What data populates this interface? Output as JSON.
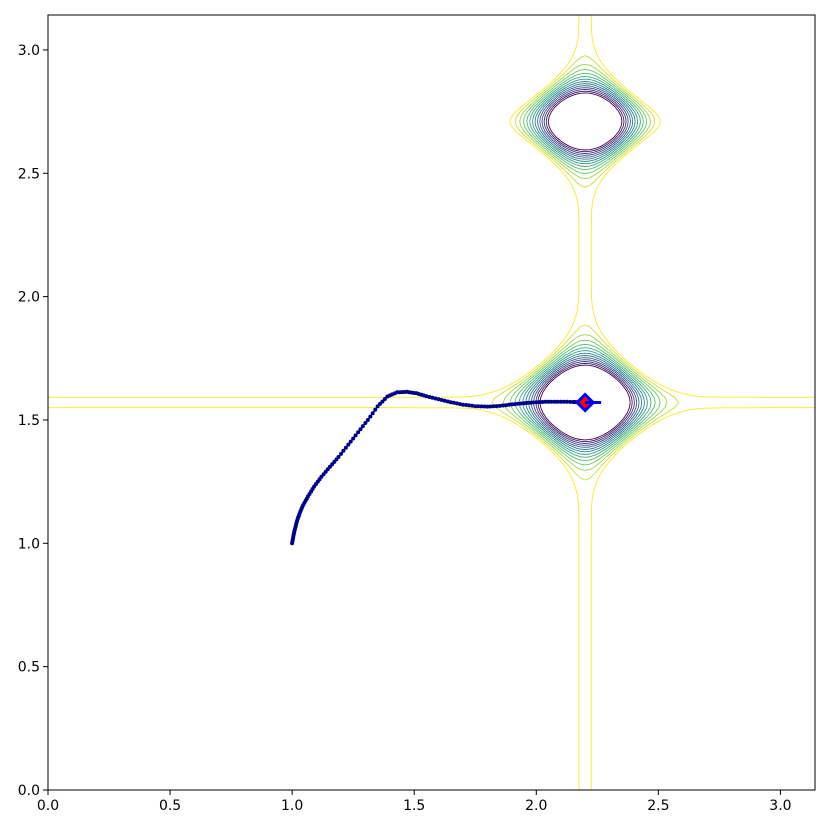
{
  "chart_data": {
    "type": "contour",
    "title": "",
    "xlabel": "",
    "ylabel": "",
    "xlim": [
      0,
      3.1416
    ],
    "ylim": [
      0,
      3.1416
    ],
    "x_ticks": [
      0.0,
      0.5,
      1.0,
      1.5,
      2.0,
      2.5,
      3.0
    ],
    "y_ticks": [
      0.0,
      0.5,
      1.0,
      1.5,
      2.0,
      2.5,
      3.0
    ],
    "x_tick_labels": [
      "0.0",
      "0.5",
      "1.0",
      "1.5",
      "2.0",
      "2.5",
      "3.0"
    ],
    "y_tick_labels": [
      "0.0",
      "0.5",
      "1.0",
      "1.5",
      "2.0",
      "2.5",
      "3.0"
    ],
    "grid": false,
    "colormap": "viridis",
    "contour_minima": [
      {
        "x": 2.2,
        "y": 1.5708
      },
      {
        "x": 2.2,
        "y": 2.71
      }
    ],
    "trajectory": {
      "color": "#00008b",
      "marker": "dot",
      "points": [
        [
          1.0,
          1.0
        ],
        [
          1.005,
          1.03
        ],
        [
          1.012,
          1.06
        ],
        [
          1.02,
          1.09
        ],
        [
          1.03,
          1.12
        ],
        [
          1.045,
          1.155
        ],
        [
          1.065,
          1.19
        ],
        [
          1.09,
          1.23
        ],
        [
          1.12,
          1.27
        ],
        [
          1.155,
          1.31
        ],
        [
          1.19,
          1.35
        ],
        [
          1.23,
          1.4
        ],
        [
          1.27,
          1.45
        ],
        [
          1.31,
          1.5
        ],
        [
          1.35,
          1.555
        ],
        [
          1.39,
          1.595
        ],
        [
          1.43,
          1.612
        ],
        [
          1.47,
          1.614
        ],
        [
          1.51,
          1.608
        ],
        [
          1.55,
          1.596
        ],
        [
          1.6,
          1.584
        ],
        [
          1.65,
          1.572
        ],
        [
          1.7,
          1.562
        ],
        [
          1.75,
          1.556
        ],
        [
          1.8,
          1.554
        ],
        [
          1.85,
          1.557
        ],
        [
          1.9,
          1.563
        ],
        [
          1.95,
          1.568
        ],
        [
          2.0,
          1.572
        ],
        [
          2.05,
          1.574
        ],
        [
          2.1,
          1.574
        ],
        [
          2.15,
          1.573
        ],
        [
          2.18,
          1.572
        ],
        [
          2.2,
          1.5708
        ]
      ]
    },
    "optimum_marker": {
      "x": 2.2,
      "y": 1.5708,
      "fill": "#ff0000",
      "stroke": "#0000ff",
      "shape": "diamond"
    }
  }
}
